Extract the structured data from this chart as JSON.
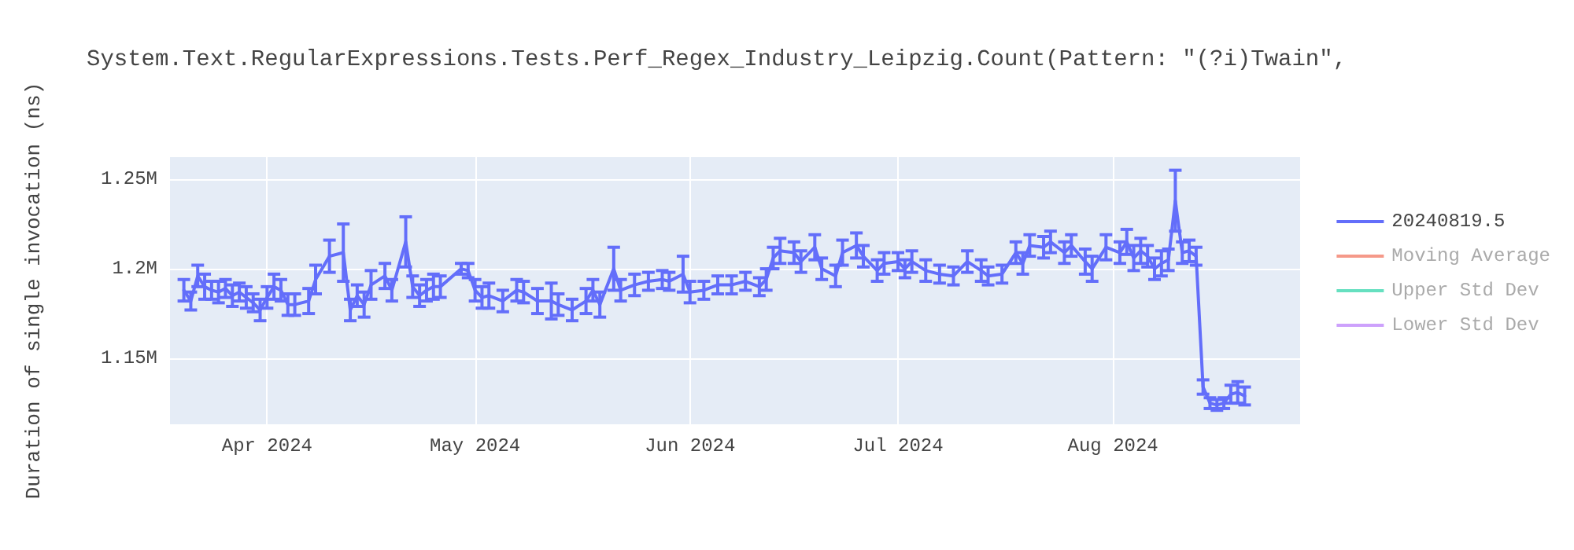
{
  "chart_data": {
    "type": "line",
    "title": "System.Text.RegularExpressions.Tests.Perf_Regex_Industry_Leipzig.Count(Pattern: \"(?i)Twain\",",
    "ylabel": "Duration of single invocation (ns)",
    "x": [
      "2024-03-20",
      "2024-03-21",
      "2024-03-22",
      "2024-03-23",
      "2024-03-24",
      "2024-03-25",
      "2024-03-26",
      "2024-03-27",
      "2024-03-28",
      "2024-03-29",
      "2024-03-30",
      "2024-03-31",
      "2024-04-01",
      "2024-04-02",
      "2024-04-03",
      "2024-04-04",
      "2024-04-05",
      "2024-04-07",
      "2024-04-08",
      "2024-04-10",
      "2024-04-12",
      "2024-04-13",
      "2024-04-14",
      "2024-04-15",
      "2024-04-16",
      "2024-04-18",
      "2024-04-19",
      "2024-04-21",
      "2024-04-22",
      "2024-04-23",
      "2024-04-24",
      "2024-04-25",
      "2024-04-26",
      "2024-04-29",
      "2024-04-30",
      "2024-05-01",
      "2024-05-02",
      "2024-05-03",
      "2024-05-05",
      "2024-05-07",
      "2024-05-08",
      "2024-05-10",
      "2024-05-12",
      "2024-05-13",
      "2024-05-15",
      "2024-05-17",
      "2024-05-18",
      "2024-05-19",
      "2024-05-21",
      "2024-05-22",
      "2024-05-24",
      "2024-05-26",
      "2024-05-28",
      "2024-05-29",
      "2024-05-31",
      "2024-06-01",
      "2024-06-03",
      "2024-06-05",
      "2024-06-07",
      "2024-06-09",
      "2024-06-11",
      "2024-06-12",
      "2024-06-13",
      "2024-06-14",
      "2024-06-16",
      "2024-06-17",
      "2024-06-19",
      "2024-06-20",
      "2024-06-22",
      "2024-06-23",
      "2024-06-25",
      "2024-06-26",
      "2024-06-28",
      "2024-06-29",
      "2024-07-01",
      "2024-07-02",
      "2024-07-03",
      "2024-07-05",
      "2024-07-07",
      "2024-07-09",
      "2024-07-11",
      "2024-07-13",
      "2024-07-14",
      "2024-07-16",
      "2024-07-18",
      "2024-07-19",
      "2024-07-20",
      "2024-07-22",
      "2024-07-23",
      "2024-07-25",
      "2024-07-26",
      "2024-07-28",
      "2024-07-29",
      "2024-07-31",
      "2024-08-02",
      "2024-08-03",
      "2024-08-04",
      "2024-08-05",
      "2024-08-06",
      "2024-08-07",
      "2024-08-08",
      "2024-08-09",
      "2024-08-10",
      "2024-08-11",
      "2024-08-12",
      "2024-08-13",
      "2024-08-14",
      "2024-08-15",
      "2024-08-16",
      "2024-08-17",
      "2024-08-18",
      "2024-08-19",
      "2024-08-20"
    ],
    "series": [
      {
        "name": "20240819.5",
        "color": "#636efa",
        "values": [
          1188000,
          1182000,
          1196000,
          1190000,
          1188000,
          1187000,
          1189000,
          1185000,
          1187000,
          1184000,
          1181000,
          1177000,
          1184000,
          1190000,
          1188000,
          1180000,
          1180000,
          1182000,
          1194000,
          1207000,
          1209000,
          1177000,
          1185000,
          1180000,
          1191000,
          1196000,
          1188000,
          1215000,
          1190000,
          1185000,
          1188000,
          1190000,
          1190000,
          1200000,
          1199000,
          1188000,
          1184000,
          1185000,
          1182000,
          1188000,
          1187000,
          1182000,
          1182000,
          1180000,
          1177000,
          1182000,
          1188000,
          1180000,
          1200000,
          1188000,
          1191000,
          1193000,
          1194000,
          1193000,
          1197000,
          1187000,
          1188000,
          1191000,
          1191000,
          1193000,
          1190000,
          1194000,
          1206000,
          1210000,
          1209000,
          1204000,
          1212000,
          1200000,
          1196000,
          1209000,
          1213000,
          1207000,
          1199000,
          1203000,
          1204000,
          1200000,
          1204000,
          1199000,
          1197000,
          1196000,
          1204000,
          1199000,
          1196000,
          1197000,
          1209000,
          1203000,
          1213000,
          1212000,
          1215000,
          1209000,
          1213000,
          1204000,
          1200000,
          1212000,
          1209000,
          1215000,
          1206000,
          1210000,
          1207000,
          1200000,
          1203000,
          1205000,
          1238000,
          1209000,
          1210000,
          1207000,
          1134000,
          1125000,
          1124000,
          1125000,
          1130000,
          1131000,
          1129000
        ],
        "errors": [
          6000,
          5000,
          6000,
          7000,
          5000,
          6000,
          5000,
          6000,
          5000,
          6000,
          5000,
          6000,
          6000,
          7000,
          6000,
          6000,
          6000,
          7000,
          8000,
          9000,
          16000,
          6000,
          6000,
          7000,
          8000,
          7000,
          6000,
          14000,
          6000,
          6000,
          6000,
          7000,
          6000,
          3000,
          4000,
          6000,
          6000,
          7000,
          6000,
          6000,
          6000,
          7000,
          10000,
          6000,
          6000,
          7000,
          6000,
          7000,
          12000,
          6000,
          6000,
          5000,
          5000,
          5000,
          10000,
          6000,
          5000,
          5000,
          5000,
          5000,
          5000,
          6000,
          6000,
          7000,
          6000,
          6000,
          7000,
          6000,
          6000,
          7000,
          7000,
          6000,
          6000,
          6000,
          5000,
          5000,
          6000,
          6000,
          5000,
          5000,
          6000,
          6000,
          5000,
          5000,
          6000,
          6000,
          6000,
          6000,
          6000,
          6000,
          6000,
          7000,
          7000,
          7000,
          6000,
          7000,
          7000,
          7000,
          6000,
          6000,
          7000,
          6000,
          17000,
          6000,
          6000,
          5000,
          4000,
          3000,
          3000,
          3000,
          5000,
          6000,
          5000
        ]
      },
      {
        "name": "Moving Average",
        "color": "#ef553b",
        "values": [
          null,
          null,
          null,
          null,
          null,
          null,
          null,
          null,
          null,
          null,
          null,
          null,
          null,
          null,
          null,
          null,
          null,
          null,
          null,
          null,
          null,
          null,
          null,
          null,
          null,
          null,
          null,
          null,
          null,
          null,
          null,
          null,
          null,
          null,
          null,
          null,
          null,
          null,
          null,
          null,
          null,
          null,
          null,
          null,
          null,
          null,
          null,
          null,
          null,
          null,
          null,
          null,
          null,
          null,
          null,
          null,
          null,
          null,
          null,
          null,
          null,
          null,
          null,
          null,
          null,
          null,
          null,
          null,
          null,
          null,
          null,
          null,
          null,
          null,
          null,
          null,
          null,
          null,
          null,
          null,
          null,
          null,
          null,
          null,
          null,
          null,
          null,
          null,
          null,
          null,
          null,
          null,
          null,
          null,
          null,
          null,
          null,
          null,
          null,
          null,
          null,
          null,
          null,
          null,
          null,
          null,
          null,
          null,
          null,
          null,
          null,
          null,
          null
        ]
      },
      {
        "name": "Upper Std Dev",
        "color": "#00cc96",
        "values": [
          null,
          null,
          null,
          null,
          null,
          null,
          null,
          null,
          null,
          null,
          null,
          null,
          null,
          null,
          null,
          null,
          null,
          null,
          null,
          null,
          null,
          null,
          null,
          null,
          null,
          null,
          null,
          null,
          null,
          null,
          null,
          null,
          null,
          null,
          null,
          null,
          null,
          null,
          null,
          null,
          null,
          null,
          null,
          null,
          null,
          null,
          null,
          null,
          null,
          null,
          null,
          null,
          null,
          null,
          null,
          null,
          null,
          null,
          null,
          null,
          null,
          null,
          null,
          null,
          null,
          null,
          null,
          null,
          null,
          null,
          null,
          null,
          null,
          null,
          null,
          null,
          null,
          null,
          null,
          null,
          null,
          null,
          null,
          null,
          null,
          null,
          null,
          null,
          null,
          null,
          null,
          null,
          null,
          null,
          null,
          null,
          null,
          null,
          null,
          null,
          null,
          null,
          null,
          null,
          null,
          null,
          null,
          null,
          null,
          null,
          null,
          null,
          null
        ]
      },
      {
        "name": "Lower Std Dev",
        "color": "#ab63fa",
        "values": [
          null,
          null,
          null,
          null,
          null,
          null,
          null,
          null,
          null,
          null,
          null,
          null,
          null,
          null,
          null,
          null,
          null,
          null,
          null,
          null,
          null,
          null,
          null,
          null,
          null,
          null,
          null,
          null,
          null,
          null,
          null,
          null,
          null,
          null,
          null,
          null,
          null,
          null,
          null,
          null,
          null,
          null,
          null,
          null,
          null,
          null,
          null,
          null,
          null,
          null,
          null,
          null,
          null,
          null,
          null,
          null,
          null,
          null,
          null,
          null,
          null,
          null,
          null,
          null,
          null,
          null,
          null,
          null,
          null,
          null,
          null,
          null,
          null,
          null,
          null,
          null,
          null,
          null,
          null,
          null,
          null,
          null,
          null,
          null,
          null,
          null,
          null,
          null,
          null,
          null,
          null,
          null,
          null,
          null,
          null,
          null,
          null,
          null,
          null,
          null,
          null,
          null,
          null,
          null,
          null,
          null,
          null,
          null,
          null,
          null,
          null,
          null,
          null
        ]
      }
    ],
    "xlim": [
      "2024-03-18",
      "2024-08-28"
    ],
    "xticks": [
      {
        "value": "2024-04-01",
        "label": "Apr 2024"
      },
      {
        "value": "2024-05-01",
        "label": "May 2024"
      },
      {
        "value": "2024-06-01",
        "label": "Jun 2024"
      },
      {
        "value": "2024-07-01",
        "label": "Jul 2024"
      },
      {
        "value": "2024-08-01",
        "label": "Aug 2024"
      }
    ],
    "ylim": [
      1113200,
      1262300
    ],
    "yticks": [
      {
        "value": 1150000,
        "label": "1.15M"
      },
      {
        "value": 1200000,
        "label": "1.2M"
      },
      {
        "value": 1250000,
        "label": "1.25M"
      }
    ],
    "grid": true,
    "legend": "top right",
    "marker": "none",
    "line_style": "solid"
  }
}
